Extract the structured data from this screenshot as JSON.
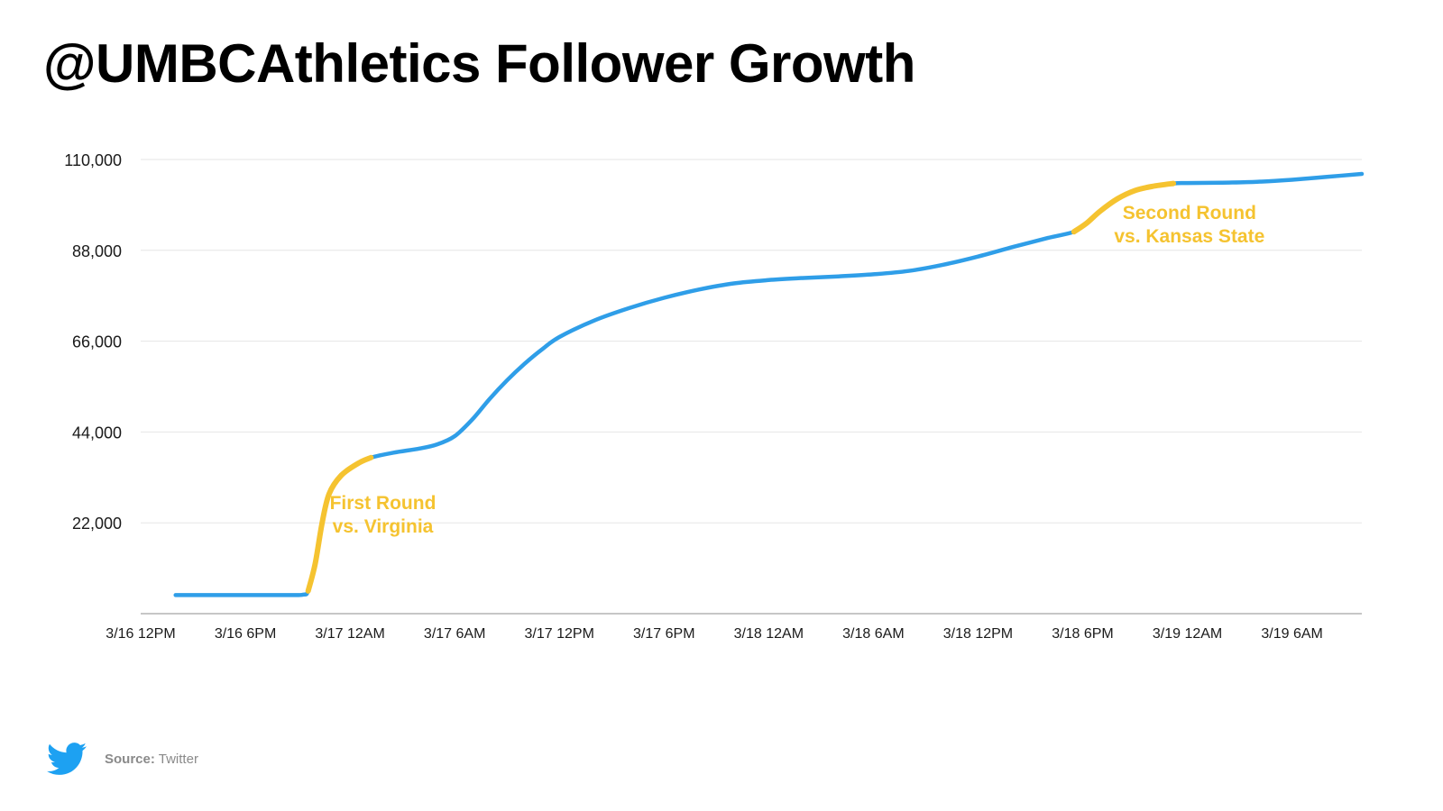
{
  "title": "@UMBCAthletics Follower Growth",
  "colors": {
    "line": "#2f9ee8",
    "highlight": "#f5c330",
    "grid": "#e6e6e6",
    "axis": "#b3b3b3",
    "twitter_blue": "#1da1f2"
  },
  "footer": {
    "icon": "twitter-bird-icon",
    "source_label": "Source:",
    "source_value": "Twitter"
  },
  "chart_data": {
    "type": "line",
    "title": "@UMBCAthletics Follower Growth",
    "xlabel": "",
    "ylabel": "",
    "x_unit": "hours after 3/16 12PM",
    "ylim": [
      0,
      110000
    ],
    "xlim": [
      0,
      70
    ],
    "yticks": [
      22000,
      44000,
      66000,
      88000,
      110000
    ],
    "ytick_labels": [
      "22,000",
      "44,000",
      "66,000",
      "88,000",
      "110,000"
    ],
    "xticks": [
      0,
      6,
      12,
      18,
      24,
      30,
      36,
      42,
      48,
      54,
      60,
      66
    ],
    "xtick_labels": [
      "3/16  12PM",
      "3/16  6PM",
      "3/17  12AM",
      "3/17  6AM",
      "3/17  12PM",
      "3/17  6PM",
      "3/18  12AM",
      "3/18  6AM",
      "3/18  12PM",
      "3/18  6PM",
      "3/19  12AM",
      "3/19  6AM"
    ],
    "grid": true,
    "series": [
      {
        "values": [
          [
            2,
            4500
          ],
          [
            6,
            4500
          ],
          [
            8.5,
            4500
          ],
          [
            9.3,
            4600
          ],
          [
            9.6,
            5500
          ],
          [
            10.0,
            12000
          ],
          [
            10.4,
            22000
          ],
          [
            10.8,
            29000
          ],
          [
            11.5,
            33500
          ],
          [
            12.5,
            36500
          ],
          [
            13.2,
            37800
          ],
          [
            14.5,
            39000
          ],
          [
            16,
            40000
          ],
          [
            17,
            41000
          ],
          [
            18,
            43000
          ],
          [
            19,
            47000
          ],
          [
            20,
            52000
          ],
          [
            21,
            56500
          ],
          [
            22,
            60500
          ],
          [
            23,
            64000
          ],
          [
            24,
            67000
          ],
          [
            26,
            71000
          ],
          [
            28,
            74000
          ],
          [
            30,
            76500
          ],
          [
            32,
            78500
          ],
          [
            34,
            80000
          ],
          [
            36,
            80800
          ],
          [
            38,
            81300
          ],
          [
            40,
            81700
          ],
          [
            42,
            82200
          ],
          [
            44,
            83000
          ],
          [
            46,
            84500
          ],
          [
            48,
            86500
          ],
          [
            50,
            88800
          ],
          [
            52,
            91000
          ],
          [
            53.5,
            92500
          ],
          [
            54.2,
            94500
          ],
          [
            55,
            97500
          ],
          [
            56,
            100500
          ],
          [
            57,
            102500
          ],
          [
            58,
            103500
          ],
          [
            59.2,
            104200
          ],
          [
            60,
            104300
          ],
          [
            62,
            104400
          ],
          [
            64,
            104600
          ],
          [
            66,
            105100
          ],
          [
            68,
            105800
          ],
          [
            70,
            106500
          ]
        ]
      }
    ],
    "highlights": [
      {
        "x_range": [
          9.6,
          13.2
        ],
        "label_lines": [
          "First Round",
          "vs. Virginia"
        ]
      },
      {
        "x_range": [
          53.5,
          59.2
        ],
        "label_lines": [
          "Second Round",
          "vs. Kansas State"
        ]
      }
    ]
  }
}
